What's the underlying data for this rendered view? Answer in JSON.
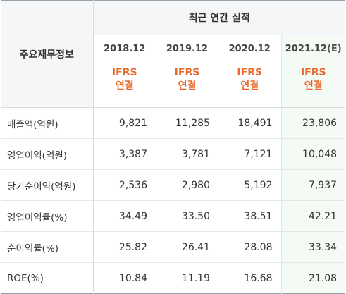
{
  "table": {
    "row_header_label": "주요재무정보",
    "group_header": "최근 연간 실적",
    "periods": [
      {
        "label": "2018.12",
        "estimate_mark": "",
        "standard": "IFRS",
        "basis": "연결"
      },
      {
        "label": "2019.12",
        "estimate_mark": "",
        "standard": "IFRS",
        "basis": "연결"
      },
      {
        "label": "2020.12",
        "estimate_mark": "",
        "standard": "IFRS",
        "basis": "연결"
      },
      {
        "label": "2021.12",
        "estimate_mark": "(E)",
        "standard": "IFRS",
        "basis": "연결"
      }
    ],
    "rows": [
      {
        "label": "매출액(억원)",
        "values": [
          "9,821",
          "11,285",
          "18,491",
          "23,806"
        ]
      },
      {
        "label": "영업이익(억원)",
        "values": [
          "3,387",
          "3,781",
          "7,121",
          "10,048"
        ]
      },
      {
        "label": "당기순이익(억원)",
        "values": [
          "2,536",
          "2,980",
          "5,192",
          "7,937"
        ]
      },
      {
        "label": "영업이익률(%)",
        "values": [
          "34.49",
          "33.50",
          "38.51",
          "42.21"
        ]
      },
      {
        "label": "순이익률(%)",
        "values": [
          "25.82",
          "26.41",
          "28.08",
          "33.34"
        ]
      },
      {
        "label": "ROE(%)",
        "values": [
          "10.84",
          "11.19",
          "16.68",
          "21.08"
        ]
      }
    ]
  },
  "colors": {
    "accent_ifrs": "#e8692a",
    "estimate_column_bg": "#f4faf4",
    "header_bg": "#f5f6f8"
  }
}
